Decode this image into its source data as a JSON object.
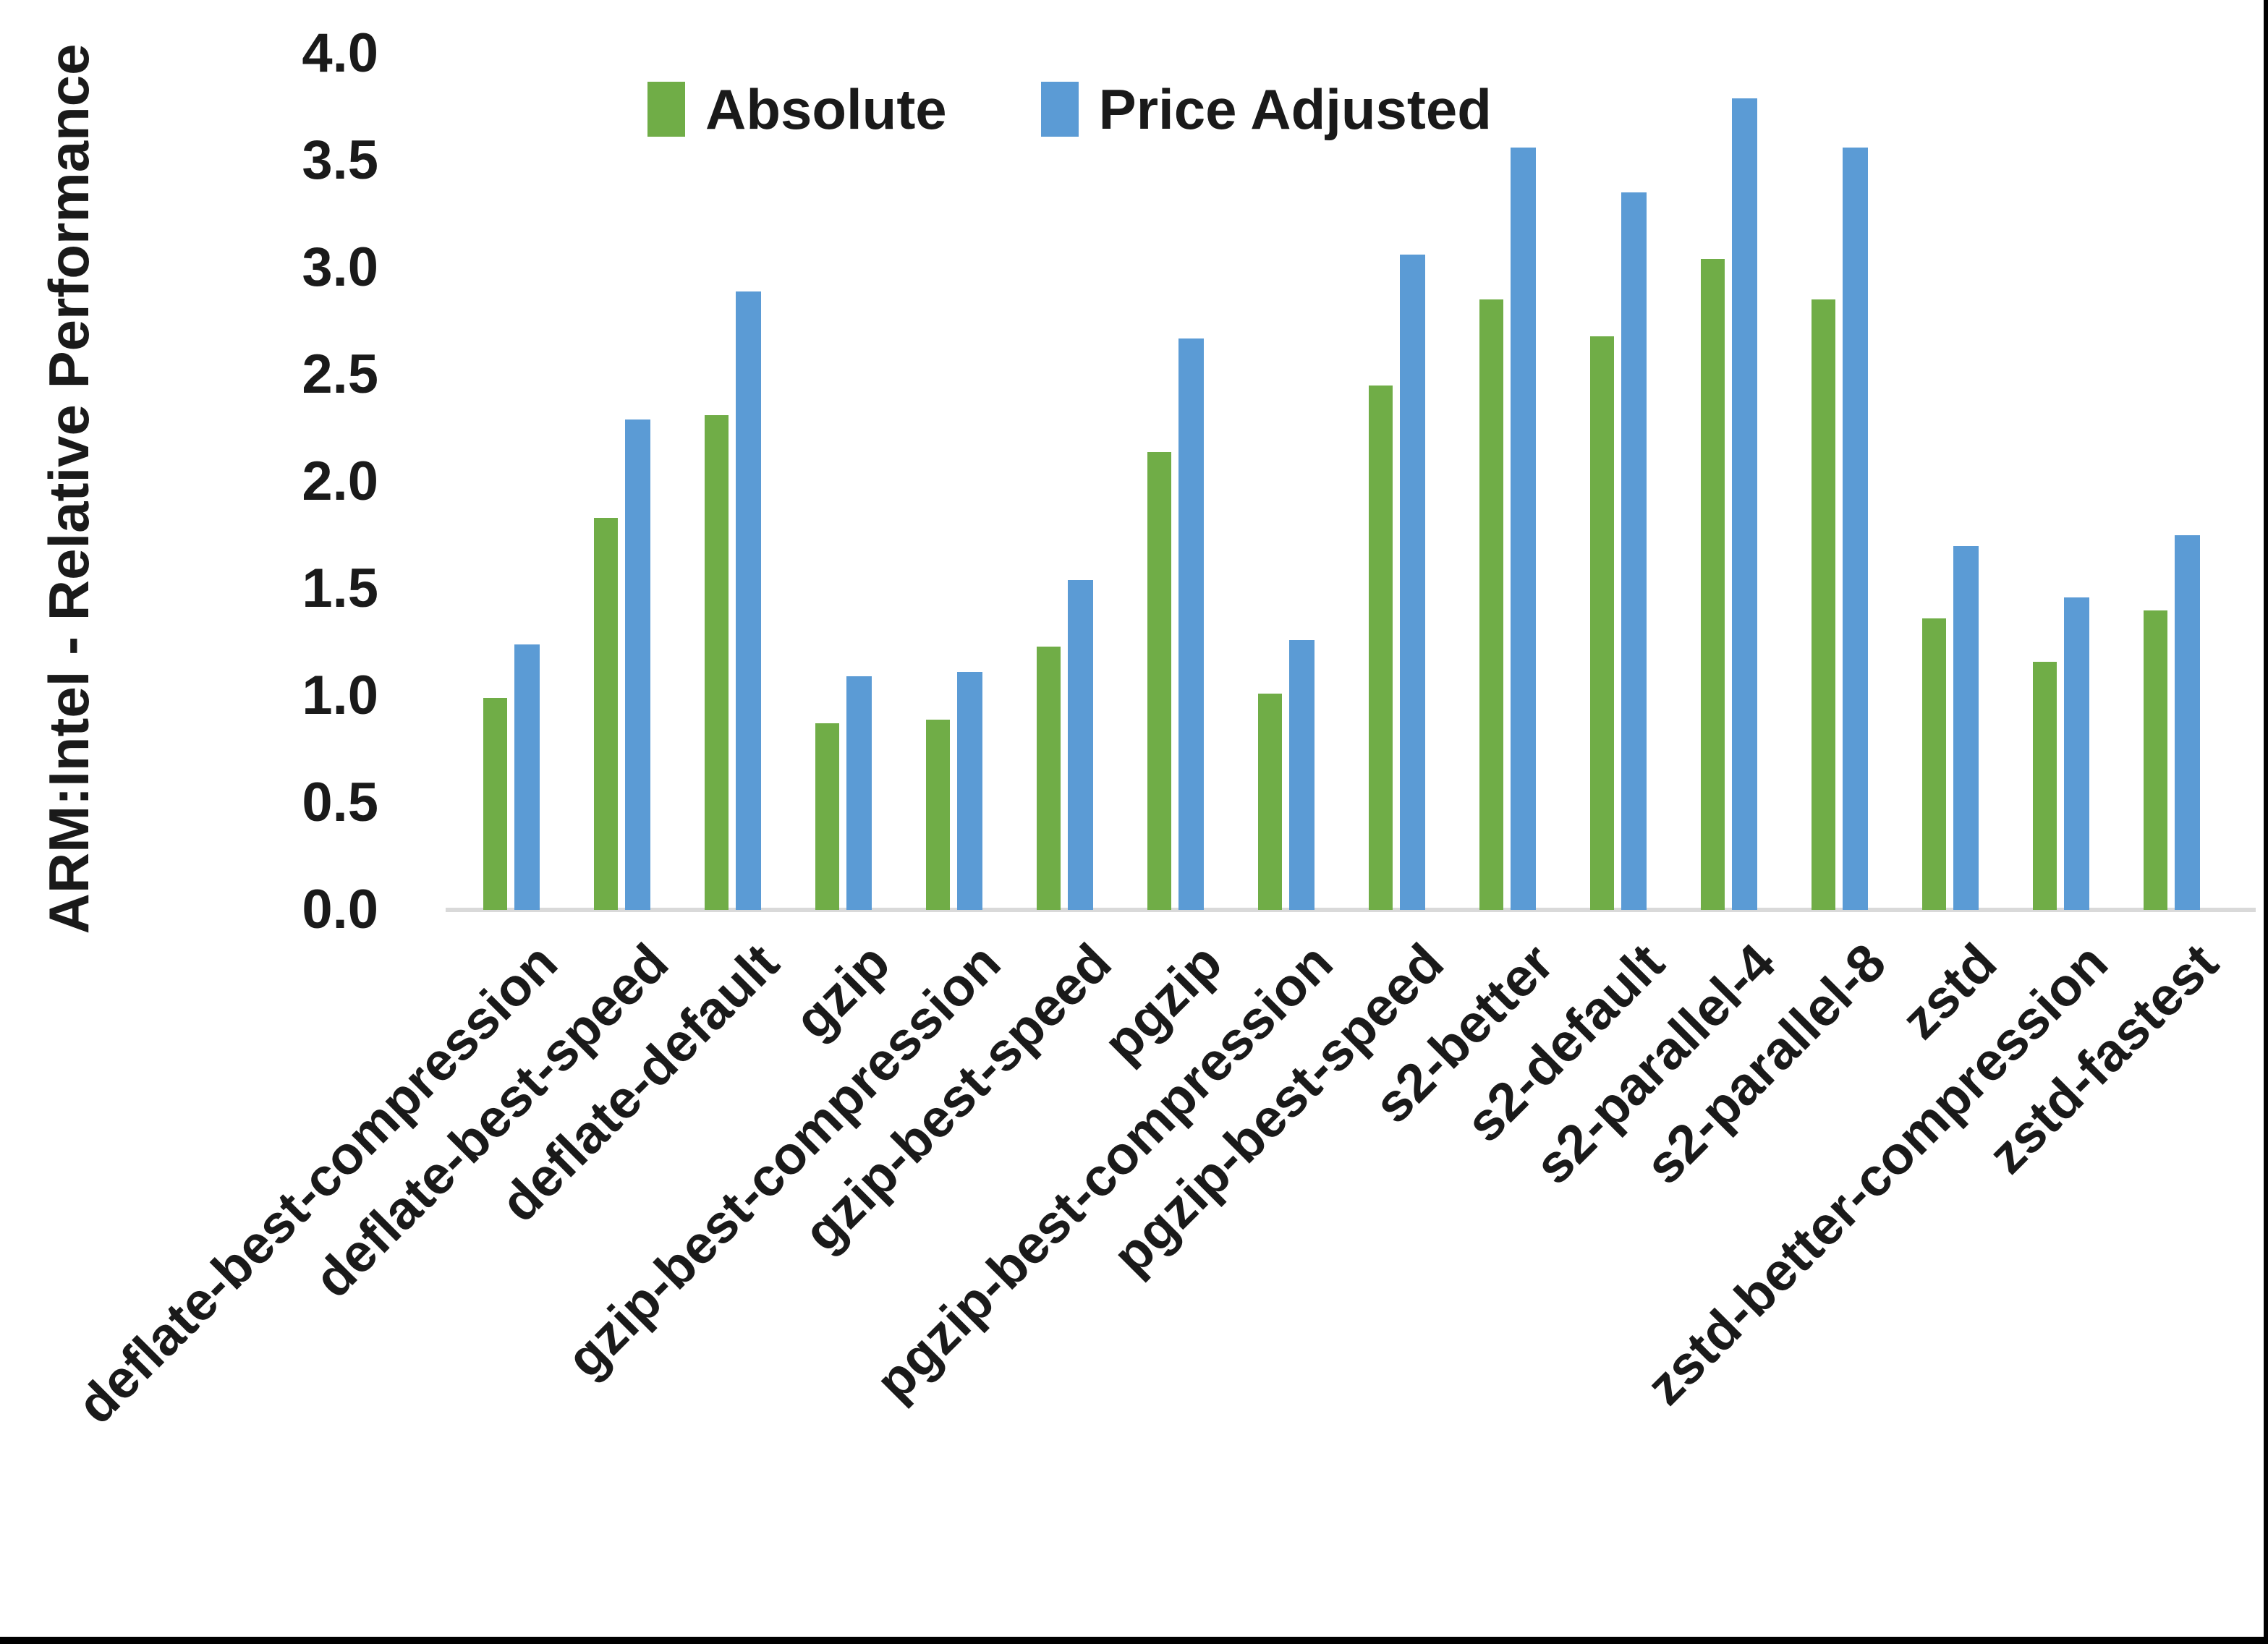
{
  "chart_data": {
    "type": "bar",
    "title": "",
    "xlabel": "",
    "ylabel": "ARM:Intel - Relative Performance",
    "ylim": [
      0.0,
      4.0
    ],
    "ytick_step": 0.5,
    "ytick_labels": [
      "0.0",
      "0.5",
      "1.0",
      "1.5",
      "2.0",
      "2.5",
      "3.0",
      "3.5",
      "4.0"
    ],
    "grid": false,
    "legend_position": "top-center",
    "categories": [
      "deflate-best-compression",
      "deflate-best-speed",
      "deflate-default",
      "gzip",
      "gzip-best-compression",
      "gzip-best-speed",
      "pgzip",
      "pgzip-best-compression",
      "pgzip-best-speed",
      "s2-better",
      "s2-default",
      "s2-parallel-4",
      "s2-parallel-8",
      "zstd",
      "zstd-better-compression",
      "zstd-fastest"
    ],
    "series": [
      {
        "name": "Absolute",
        "color": "#70AD47",
        "values": [
          0.99,
          1.83,
          2.31,
          0.87,
          0.89,
          1.23,
          2.14,
          1.01,
          2.45,
          2.85,
          2.68,
          3.04,
          2.85,
          1.36,
          1.16,
          1.4
        ]
      },
      {
        "name": "Price Adjusted",
        "color": "#5B9BD5",
        "values": [
          1.24,
          2.29,
          2.89,
          1.09,
          1.11,
          1.54,
          2.67,
          1.26,
          3.06,
          3.56,
          3.35,
          3.79,
          3.56,
          1.7,
          1.46,
          1.75
        ]
      }
    ],
    "colors": {
      "axis_line": "#D9D9D9",
      "text": "#1A1A1A",
      "background": "#FFFFFF",
      "frame_border": "#000000"
    }
  }
}
